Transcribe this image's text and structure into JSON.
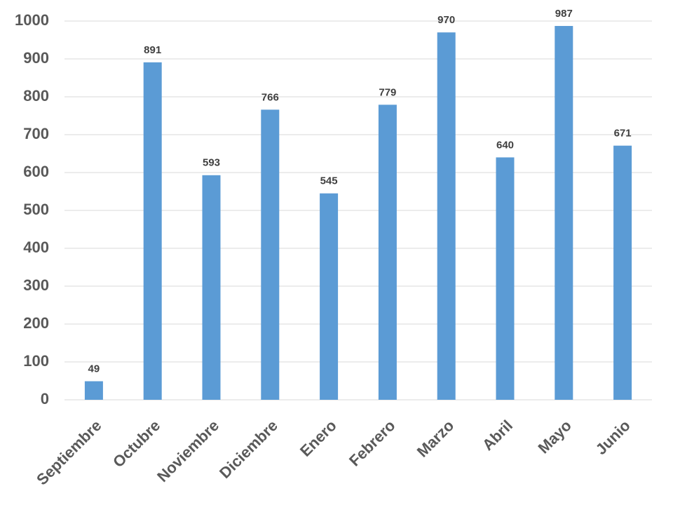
{
  "chart_data": {
    "type": "bar",
    "categories": [
      "Septiembre",
      "Octubre",
      "Noviembre",
      "Diciembre",
      "Enero",
      "Febrero",
      "Marzo",
      "Abril",
      "Mayo",
      "Junio"
    ],
    "values": [
      49,
      891,
      593,
      766,
      545,
      779,
      970,
      640,
      987,
      671
    ],
    "color": "#5b9bd5",
    "ylim": [
      0,
      1000
    ],
    "yticks": [
      0,
      100,
      200,
      300,
      400,
      500,
      600,
      700,
      800,
      900,
      1000
    ],
    "grid": true
  }
}
